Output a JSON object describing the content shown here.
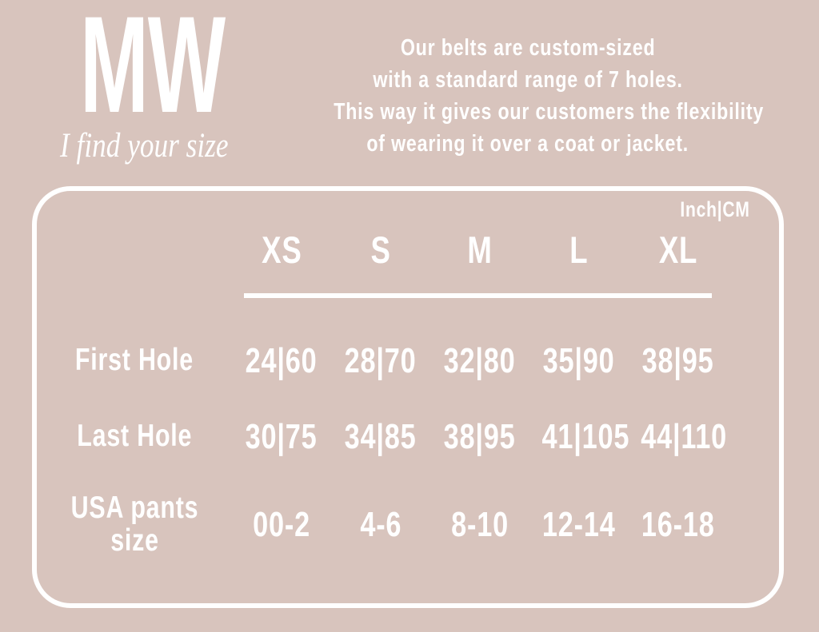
{
  "page": {
    "background_color": "#d8c4bd",
    "text_color": "#ffffff"
  },
  "header": {
    "logo": "MW",
    "tagline": "I find your size",
    "intro_lines": [
      "Our belts are custom-sized",
      "with a standard range of 7 holes.",
      "This way it gives our customers the flexibility",
      "of wearing it over a coat or jacket."
    ]
  },
  "chart_data": {
    "type": "table",
    "unit_label": "Inch|CM",
    "columns": [
      "XS",
      "S",
      "M",
      "L",
      "XL"
    ],
    "rows": [
      {
        "label": "First Hole",
        "values": [
          "24|60",
          "28|70",
          "32|80",
          "35|90",
          "38|95"
        ]
      },
      {
        "label": "Last Hole",
        "values": [
          "30|75",
          "34|85",
          "38|95",
          "41|105",
          "44|110"
        ]
      },
      {
        "label": "USA pants size",
        "values": [
          "00-2",
          "4-6",
          "8-10",
          "12-14",
          "16-18"
        ]
      }
    ]
  }
}
